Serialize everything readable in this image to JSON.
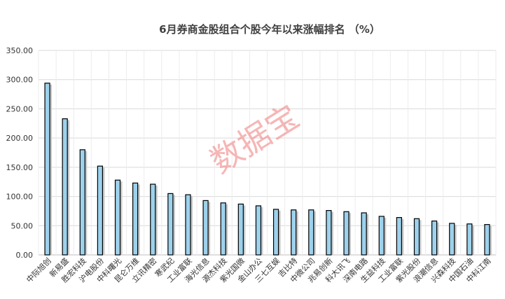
{
  "chart_data": {
    "type": "bar",
    "title": "6月券商金股组合个股今年以来涨幅排名 （%）",
    "xlabel": "",
    "ylabel": "",
    "ylim": [
      0,
      350
    ],
    "yticks": [
      "0.00",
      "50.00",
      "100.00",
      "150.00",
      "200.00",
      "250.00",
      "300.00",
      "350.00"
    ],
    "grid": true,
    "bar_color": "#9dd1ec",
    "bar_edge_color": "#000000",
    "categories": [
      "中际旭创",
      "新易盛",
      "胜宏科技",
      "沪电股份",
      "中科曙光",
      "昆仑万维",
      "立讯精密",
      "寒武纪",
      "工业富联",
      "海光信息",
      "源杰科技",
      "紫光国微",
      "金山办公",
      "三七互娱",
      "吉比特",
      "中微公司",
      "兆易创新",
      "科大讯飞",
      "深南电路",
      "生益科技",
      "工业富联",
      "紫光股份",
      "浪潮信息",
      "兴森科技",
      "中国石油",
      "中科江南"
    ],
    "values": [
      294,
      233,
      180,
      152,
      128,
      123,
      121,
      105,
      103,
      93,
      89,
      87,
      84,
      78,
      77,
      77,
      76,
      74,
      72,
      66,
      64,
      62,
      58,
      54,
      53,
      52
    ],
    "watermark": "数据宝"
  }
}
